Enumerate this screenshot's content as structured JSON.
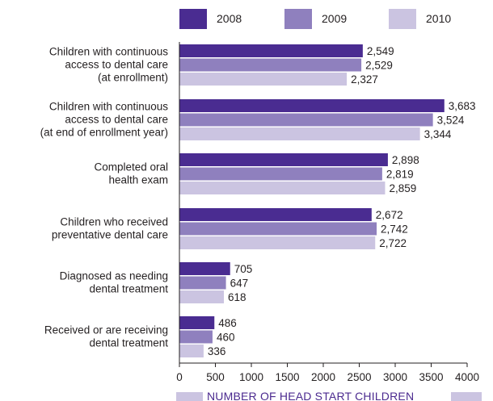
{
  "chart_data": {
    "type": "bar",
    "orientation": "horizontal",
    "categories": [
      [
        "Children with continuous",
        "access to dental care",
        "(at enrollment)"
      ],
      [
        "Children with continuous",
        "access to dental care",
        "(at end of enrollment year)"
      ],
      [
        "Completed oral",
        "health exam"
      ],
      [
        "Children who received",
        "preventative dental care"
      ],
      [
        "Diagnosed as needing",
        "dental treatment"
      ],
      [
        "Received or are receiving",
        "dental treatment"
      ]
    ],
    "series": [
      {
        "name": "2008",
        "color": "#4a2c91",
        "values": [
          2549,
          3683,
          2898,
          2672,
          705,
          486
        ],
        "labels": [
          "2,549",
          "3,683",
          "2,898",
          "2,672",
          "705",
          "486"
        ]
      },
      {
        "name": "2009",
        "color": "#8f80be",
        "values": [
          2529,
          3524,
          2819,
          2742,
          647,
          460
        ],
        "labels": [
          "2,529",
          "3,524",
          "2,819",
          "2,742",
          "647",
          "460"
        ]
      },
      {
        "name": "2010",
        "color": "#cbc4e1",
        "values": [
          2327,
          3344,
          2859,
          2722,
          618,
          336
        ],
        "labels": [
          "2,327",
          "3,344",
          "2,859",
          "2,722",
          "618",
          "336"
        ]
      }
    ],
    "xlim": [
      0,
      4000
    ],
    "xticks": [
      0,
      500,
      1000,
      1500,
      2000,
      2500,
      3000,
      3500,
      4000
    ],
    "xtick_labels": [
      "0",
      "500",
      "1000",
      "1500",
      "2000",
      "2500",
      "3000",
      "3500",
      "4000"
    ],
    "xlabel": "NUMBER OF HEAD START CHILDREN",
    "legend_position": "top",
    "grid": false
  }
}
